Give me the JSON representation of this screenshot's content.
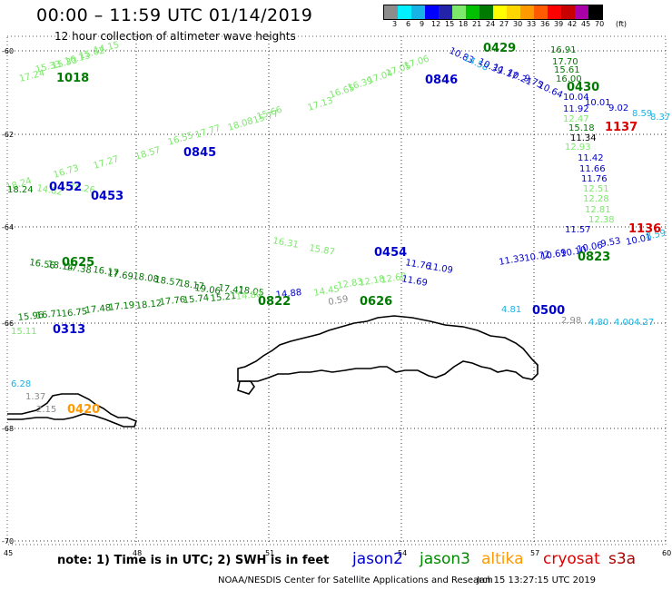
{
  "header": {
    "title": "00:00 – 11:59 UTC 01/14/2019",
    "subtitle": "12 hour collection of altimeter wave heights"
  },
  "color_scale": {
    "unit": "(ft)",
    "ticks": [
      "3",
      "6",
      "9",
      "12",
      "15",
      "18",
      "21",
      "24",
      "27",
      "30",
      "33",
      "36",
      "39",
      "42",
      "45",
      "70"
    ],
    "colors": [
      "#8c8c8c",
      "#00f0ff",
      "#17b3e6",
      "#0000ff",
      "#2222aa",
      "#7ce96b",
      "#00c000",
      "#007a00",
      "#ffff00",
      "#ffd700",
      "#ff9900",
      "#ff5a00",
      "#ff0000",
      "#c80000",
      "#aa00aa",
      "#000000"
    ]
  },
  "axes": {
    "lon_labels": [
      "45",
      "48",
      "51",
      "54",
      "57",
      "60"
    ],
    "lat_labels": [
      "-60",
      "-62",
      "-64",
      "-66",
      "-68",
      "-70"
    ]
  },
  "footer": {
    "note": "note: 1) Time is in UTC; 2) SWH is in feet",
    "credit": "NOAA/NESDIS Center for Satellite Applications and Research",
    "timestamp": "Jan 15 13:27:15 UTC 2019"
  },
  "legend": [
    {
      "name": "jason2",
      "color": "#0000cc"
    },
    {
      "name": "jason3",
      "color": "#008800"
    },
    {
      "name": "altika",
      "color": "#ff9900"
    },
    {
      "name": "cryosat",
      "color": "#dd0000"
    },
    {
      "name": "s3a",
      "color": "#aa0000"
    }
  ],
  "tracks": [
    {
      "time": "1018",
      "color": "#007a00",
      "points": [
        {
          "v": "17.24",
          "c": "#7ce96b"
        },
        {
          "v": "15.33",
          "c": "#7ce96b"
        },
        {
          "v": "15.33",
          "c": "#7ce96b"
        },
        {
          "v": "16.13",
          "c": "#7ce96b"
        },
        {
          "v": "15.62",
          "c": "#7ce96b"
        },
        {
          "v": "14.15",
          "c": "#7ce96b"
        }
      ]
    },
    {
      "time": "0846",
      "color": "#0000cc",
      "points": [
        {
          "v": "15.66",
          "c": "#7ce96b"
        },
        {
          "v": "17.13",
          "c": "#7ce96b"
        },
        {
          "v": "16.65",
          "c": "#7ce96b"
        },
        {
          "v": "16.39",
          "c": "#7ce96b"
        },
        {
          "v": "17.04",
          "c": "#7ce96b"
        },
        {
          "v": "17.05",
          "c": "#7ce96b"
        },
        {
          "v": "17.06",
          "c": "#7ce96b"
        }
      ]
    },
    {
      "time": "0845",
      "color": "#0000cc",
      "points": [
        {
          "v": "18.24",
          "c": "#7ce96b"
        },
        {
          "v": "16.73",
          "c": "#7ce96b"
        },
        {
          "v": "17.27",
          "c": "#7ce96b"
        },
        {
          "v": "18.57",
          "c": "#7ce96b"
        },
        {
          "v": "16.55",
          "c": "#7ce96b"
        },
        {
          "v": "17.77",
          "c": "#7ce96b"
        },
        {
          "v": "18.08",
          "c": "#7ce96b"
        },
        {
          "v": "15.77",
          "c": "#7ce96b"
        }
      ]
    },
    {
      "time": "0429",
      "color": "#007a00",
      "points": [
        {
          "v": "10.83",
          "c": "#0000cc"
        },
        {
          "v": "14.58",
          "c": "#17b3e6"
        },
        {
          "v": "10.39",
          "c": "#0000cc"
        },
        {
          "v": "11.17",
          "c": "#0000cc"
        },
        {
          "v": "10.21",
          "c": "#0000cc"
        },
        {
          "v": "9.75",
          "c": "#0000cc"
        },
        {
          "v": "10.64",
          "c": "#0000cc"
        }
      ]
    },
    {
      "time": "0430",
      "color": "#007a00",
      "points": [
        {
          "v": "16.91",
          "c": "#007a00"
        },
        {
          "v": "17.70",
          "c": "#007a00"
        },
        {
          "v": "15.61",
          "c": "#007a00"
        },
        {
          "v": "16.00",
          "c": "#007a00"
        },
        {
          "v": "10.04",
          "c": "#0000cc"
        },
        {
          "v": "10.01",
          "c": "#0000cc"
        },
        {
          "v": "9.02",
          "c": "#0000cc"
        },
        {
          "v": "8.59",
          "c": "#17b3e6"
        },
        {
          "v": "8.37",
          "c": "#17b3e6"
        }
      ]
    },
    {
      "time": "1137",
      "color": "#dd0000",
      "points": [
        {
          "v": "11.92",
          "c": "#0000cc"
        },
        {
          "v": "12.47",
          "c": "#7ce96b"
        },
        {
          "v": "15.18",
          "c": "#007a00"
        },
        {
          "v": "11.34",
          "c": "#000000"
        },
        {
          "v": "12.93",
          "c": "#7ce96b"
        },
        {
          "v": "11.42",
          "c": "#0000cc"
        },
        {
          "v": "11.66",
          "c": "#0000cc"
        },
        {
          "v": "11.76",
          "c": "#0000cc"
        },
        {
          "v": "12.51",
          "c": "#7ce96b"
        },
        {
          "v": "12.28",
          "c": "#7ce96b"
        },
        {
          "v": "12.81",
          "c": "#7ce96b"
        },
        {
          "v": "12.38",
          "c": "#7ce96b"
        },
        {
          "v": "11.57",
          "c": "#0000cc"
        }
      ]
    },
    {
      "time": "1136",
      "color": "#dd0000",
      "points": [
        {
          "v": "10.01",
          "c": "#0000cc"
        },
        {
          "v": "8.59",
          "c": "#17b3e6"
        }
      ]
    },
    {
      "time": "0823",
      "color": "#007a00",
      "points": [
        {
          "v": "11.33",
          "c": "#0000cc"
        },
        {
          "v": "10.72",
          "c": "#0000cc"
        },
        {
          "v": "10.69",
          "c": "#0000cc"
        },
        {
          "v": "10.10",
          "c": "#0000cc"
        },
        {
          "v": "10.06",
          "c": "#0000cc"
        },
        {
          "v": "9.53",
          "c": "#0000cc"
        }
      ]
    },
    {
      "time": "0625",
      "color": "#007a00",
      "points": [
        {
          "v": "16.56",
          "c": "#007a00"
        },
        {
          "v": "18.14",
          "c": "#007a00"
        },
        {
          "v": "17.38",
          "c": "#007a00"
        },
        {
          "v": "16.17",
          "c": "#007a00"
        },
        {
          "v": "17.69",
          "c": "#007a00"
        },
        {
          "v": "18.08",
          "c": "#007a00"
        },
        {
          "v": "18.57",
          "c": "#007a00"
        },
        {
          "v": "18.17",
          "c": "#007a00"
        },
        {
          "v": "19.06",
          "c": "#007a00"
        },
        {
          "v": "17.41",
          "c": "#007a00"
        },
        {
          "v": "18.05",
          "c": "#007a00"
        }
      ]
    },
    {
      "time": "0822",
      "color": "#007a00",
      "points": [
        {
          "v": "15.96",
          "c": "#007a00"
        },
        {
          "v": "16.71",
          "c": "#007a00"
        },
        {
          "v": "16.75",
          "c": "#007a00"
        },
        {
          "v": "17.48",
          "c": "#007a00"
        },
        {
          "v": "17.19",
          "c": "#007a00"
        },
        {
          "v": "18.12",
          "c": "#007a00"
        },
        {
          "v": "17.76",
          "c": "#007a00"
        },
        {
          "v": "15.74",
          "c": "#007a00"
        },
        {
          "v": "15.21",
          "c": "#007a00"
        },
        {
          "v": "14.80",
          "c": "#7ce96b"
        },
        {
          "v": "14.88",
          "c": "#0000cc"
        }
      ]
    },
    {
      "time": "0626",
      "color": "#007a00",
      "points": [
        {
          "v": "14.45",
          "c": "#7ce96b"
        },
        {
          "v": "12.83",
          "c": "#7ce96b"
        },
        {
          "v": "12.18",
          "c": "#7ce96b"
        },
        {
          "v": "12.60",
          "c": "#7ce96b"
        },
        {
          "v": "0.59",
          "c": "#8c8c8c"
        }
      ]
    },
    {
      "time": "0454",
      "color": "#0000cc",
      "points": [
        {
          "v": "15.87",
          "c": "#7ce96b"
        },
        {
          "v": "16.31",
          "c": "#7ce96b"
        },
        {
          "v": "11.76",
          "c": "#0000cc"
        },
        {
          "v": "11.69",
          "c": "#0000cc"
        },
        {
          "v": "11.09",
          "c": "#0000cc"
        }
      ]
    },
    {
      "time": "0453",
      "color": "#0000cc",
      "points": [
        {
          "v": "14.82",
          "c": "#7ce96b"
        },
        {
          "v": "16.26",
          "c": "#7ce96b"
        }
      ]
    },
    {
      "time": "0452",
      "color": "#0000cc",
      "points": [
        {
          "v": "18.24",
          "c": "#007a00"
        }
      ]
    },
    {
      "time": "0500",
      "color": "#0000cc",
      "points": [
        {
          "v": "4.81",
          "c": "#17b3e6"
        },
        {
          "v": "2.98",
          "c": "#8c8c8c"
        },
        {
          "v": "4.80",
          "c": "#17b3e6"
        },
        {
          "v": "4.00",
          "c": "#17b3e6"
        },
        {
          "v": "4.27",
          "c": "#17b3e6"
        }
      ]
    },
    {
      "time": "0420",
      "color": "#ff9900",
      "points": [
        {
          "v": "6.28",
          "c": "#17b3e6"
        },
        {
          "v": "1.37",
          "c": "#8c8c8c"
        },
        {
          "v": "2.15",
          "c": "#8c8c8c"
        }
      ]
    },
    {
      "time": "0313",
      "color": "#0000cc",
      "points": [
        {
          "v": "15.11",
          "c": "#7ce96b"
        }
      ]
    }
  ]
}
